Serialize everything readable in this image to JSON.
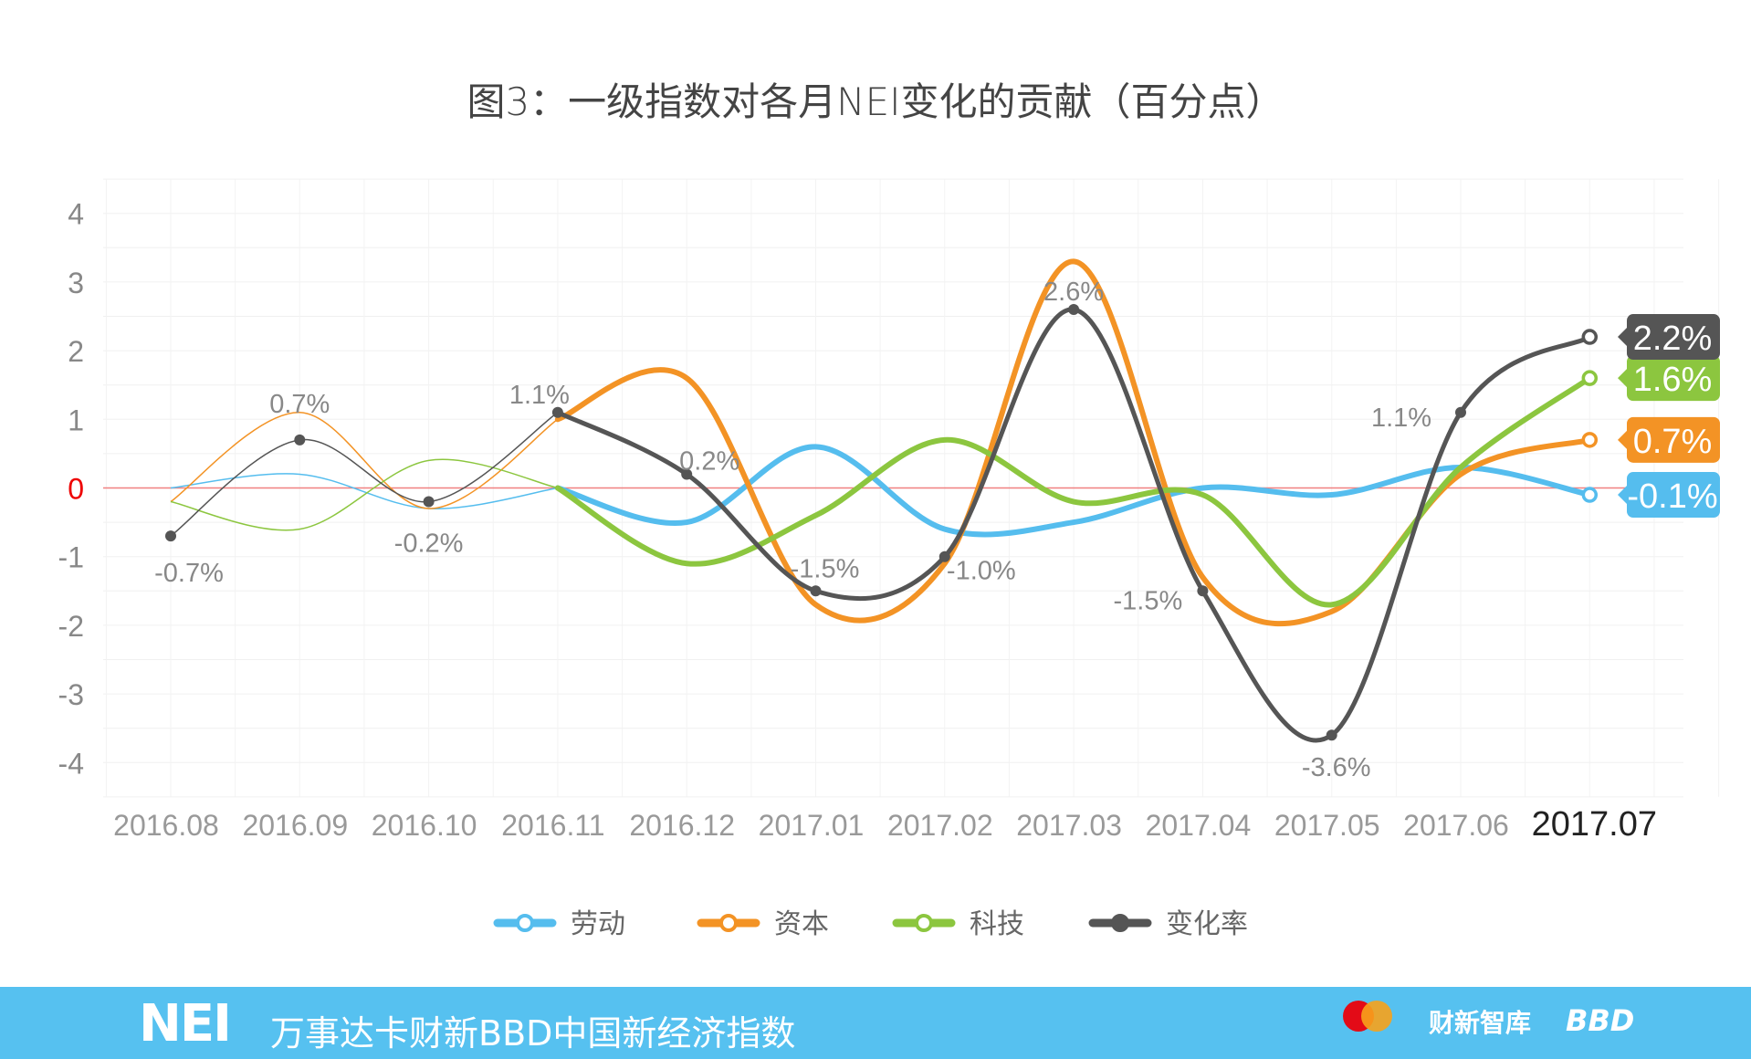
{
  "chart_data": {
    "type": "line",
    "title": "图3：一级指数对各月NEI变化的贡献（百分点）",
    "categories": [
      "2016.08",
      "2016.09",
      "2016.10",
      "2016.11",
      "2016.12",
      "2017.01",
      "2017.02",
      "2017.03",
      "2017.04",
      "2017.05",
      "2017.06",
      "2017.07"
    ],
    "ylim": [
      -4,
      4
    ],
    "yticks": [
      "4",
      "3",
      "2",
      "1",
      "0",
      "-1",
      "-2",
      "-3",
      "-4"
    ],
    "grid": true,
    "legend_position": "bottom",
    "series": [
      {
        "name": "劳动",
        "color": "#55bdee",
        "values": [
          0,
          0.2,
          -0.3,
          0,
          -0.5,
          0.6,
          -0.6,
          -0.5,
          0,
          -0.1,
          0.3,
          -0.1
        ],
        "end_label": "-0.1%"
      },
      {
        "name": "资本",
        "color": "#f39325",
        "values": [
          -0.2,
          1.1,
          -0.3,
          1.0,
          1.6,
          -1.7,
          -1.1,
          3.3,
          -1.3,
          -1.8,
          0.2,
          0.7
        ],
        "end_label": "0.7%"
      },
      {
        "name": "科技",
        "color": "#8cc63f",
        "values": [
          -0.2,
          -0.6,
          0.4,
          0,
          -1.1,
          -0.4,
          0.7,
          -0.2,
          -0.1,
          -1.7,
          0.3,
          1.6
        ],
        "end_label": "1.6%"
      },
      {
        "name": "变化率",
        "color": "#555555",
        "values": [
          -0.7,
          0.7,
          -0.2,
          1.1,
          0.2,
          -1.5,
          -1.0,
          2.6,
          -1.5,
          -3.6,
          1.1,
          2.2
        ],
        "end_label": "2.2%",
        "data_labels": [
          "-0.7%",
          "0.7%",
          "-0.2%",
          "1.1%",
          "0.2%",
          "-1.5%",
          "-1.0%",
          "2.6%",
          "-1.5%",
          "-3.6%",
          "1.1%"
        ]
      }
    ],
    "zero_line_color": "#f08080"
  },
  "footer": {
    "logo": "NEI",
    "subtitle": "万事达卡财新BBD中国新经济指数",
    "partners": [
      "mastercard",
      "财新智库",
      "BBD"
    ]
  }
}
